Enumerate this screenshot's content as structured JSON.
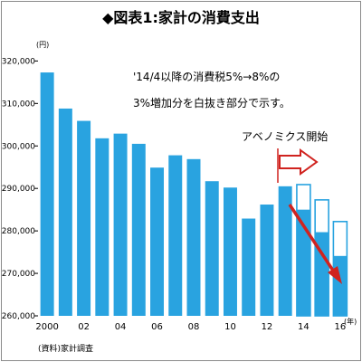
{
  "chart_data": {
    "type": "bar",
    "title": "◆図表1:家計の消費支出",
    "y_unit_label": "(円)",
    "x_unit_label": "(年)",
    "source": "(資料)家計調査",
    "ylim": [
      260000,
      322000
    ],
    "y_ticks": [
      260000,
      270000,
      280000,
      290000,
      300000,
      310000,
      320000
    ],
    "y_tick_labels": [
      "260,000",
      "270,000",
      "280,000",
      "290,000",
      "300,000",
      "310,000",
      "320,000"
    ],
    "x": [
      2000,
      2001,
      2002,
      2003,
      2004,
      2005,
      2006,
      2007,
      2008,
      2009,
      2010,
      2011,
      2012,
      2013,
      2014,
      2015,
      2016
    ],
    "x_tick_labels": [
      "2000",
      "",
      "02",
      "",
      "04",
      "",
      "06",
      "",
      "08",
      "",
      "10",
      "",
      "12",
      "",
      "14",
      "",
      "16"
    ],
    "series": [
      {
        "values": [
          317300,
          308800,
          305900,
          301800,
          302900,
          300500,
          294900,
          297800,
          296900,
          291700,
          290200,
          282900,
          286200,
          290500,
          285000,
          279700,
          274100
        ]
      }
    ],
    "tax_increase_tops": [
      null,
      null,
      null,
      null,
      null,
      null,
      null,
      null,
      null,
      null,
      null,
      null,
      null,
      null,
      290900,
      287300,
      282200
    ],
    "grid": false,
    "colors": {
      "bar": "#29a3e0",
      "tax_box_fill": "#ffffff",
      "tax_box_border": "#29a3e0",
      "accent": "#d0231f"
    },
    "annotations": [
      {
        "id": "tax-note-line1",
        "text": "'14/4以降の消費税5%→8%の"
      },
      {
        "id": "tax-note-line2",
        "text": "3%増加分を白抜き部分で示す。"
      },
      {
        "id": "abenomics-label",
        "text": "アベノミクス開始"
      }
    ]
  }
}
